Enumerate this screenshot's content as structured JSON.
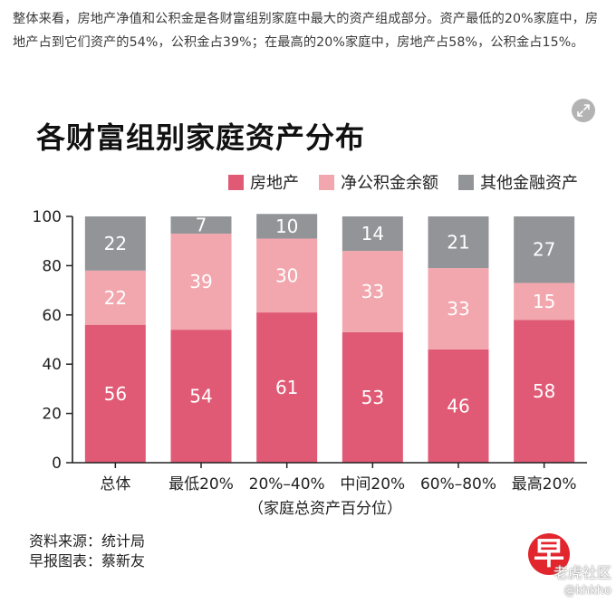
{
  "article": {
    "intro": "整体来看，房地产净值和公积金是各财富组别家庭中最大的资产组成部分。资产最低的20%家庭中，房地产占到它们资产的54%，公积金占39%；在最高的20%家庭中，房地产占58%，公积金占15%。"
  },
  "expand_icon": "expand-arrows-icon",
  "chart_data": {
    "type": "bar",
    "stacked": true,
    "title": "各财富组别家庭资产分布",
    "xlabel": "（家庭总资产百分位）",
    "ylabel": "",
    "ylim": [
      0,
      100
    ],
    "yticks": [
      0,
      20,
      40,
      60,
      80,
      100
    ],
    "grid": false,
    "legend_position": "top-right",
    "categories": [
      "总体",
      "最低20%",
      "20%–40%",
      "中间20%",
      "60%–80%",
      "最高20%"
    ],
    "series": [
      {
        "name": "房地产",
        "color": "#e05a75",
        "values": [
          56,
          54,
          61,
          53,
          46,
          58
        ]
      },
      {
        "name": "净公积金余额",
        "color": "#f2a6ad",
        "values": [
          22,
          39,
          30,
          33,
          33,
          15
        ]
      },
      {
        "name": "其他金融资产",
        "color": "#929497",
        "values": [
          22,
          7,
          10,
          14,
          21,
          27
        ]
      }
    ]
  },
  "source": {
    "line1": "资料来源：统计局",
    "line2": "早报图表：蔡新友"
  },
  "logo": {
    "glyph": "早"
  },
  "watermark": {
    "main": "老虎社区",
    "user": "@khkho"
  }
}
